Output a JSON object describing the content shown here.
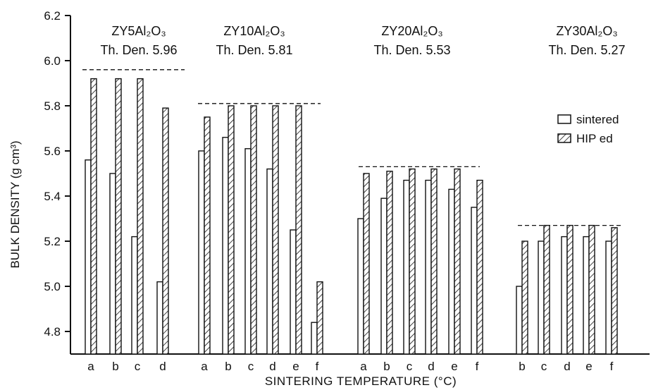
{
  "chart_data": {
    "type": "bar",
    "xlabel": "SINTERING TEMPERATURE (°C)",
    "ylabel": "BULK DENSITY  (g cm³)",
    "ylim": [
      4.7,
      6.2
    ],
    "yticks": [
      4.8,
      5.0,
      5.2,
      5.4,
      5.6,
      5.8,
      6.0,
      6.2
    ],
    "grid": false,
    "legend_position": "right",
    "legend": [
      {
        "key": "sintered",
        "label": "sintered",
        "pattern": "open"
      },
      {
        "key": "hip",
        "label": "HIP ed",
        "pattern": "hatched"
      }
    ],
    "groups": [
      {
        "name": "ZY5Al₂O₃",
        "theoretical_label": "Th. Den. 5.96",
        "theoretical_density": 5.96,
        "categories": [
          "a",
          "b",
          "c",
          "d"
        ],
        "series": [
          {
            "name": "sintered",
            "values": [
              5.56,
              5.5,
              5.22,
              5.02
            ]
          },
          {
            "name": "HIP ed",
            "values": [
              5.92,
              5.92,
              5.92,
              5.79
            ]
          }
        ]
      },
      {
        "name": "ZY10Al₂O₃",
        "theoretical_label": "Th. Den. 5.81",
        "theoretical_density": 5.81,
        "categories": [
          "a",
          "b",
          "c",
          "d",
          "e",
          "f"
        ],
        "series": [
          {
            "name": "sintered",
            "values": [
              5.6,
              5.66,
              5.61,
              5.52,
              5.25,
              4.84
            ]
          },
          {
            "name": "HIP ed",
            "values": [
              5.75,
              5.8,
              5.8,
              5.8,
              5.8,
              5.02
            ]
          }
        ]
      },
      {
        "name": "ZY20Al₂O₃",
        "theoretical_label": "Th. Den. 5.53",
        "theoretical_density": 5.53,
        "categories": [
          "a",
          "b",
          "c",
          "d",
          "e",
          "f"
        ],
        "series": [
          {
            "name": "sintered",
            "values": [
              5.3,
              5.39,
              5.47,
              5.47,
              5.43,
              5.35
            ]
          },
          {
            "name": "HIP ed",
            "values": [
              5.5,
              5.51,
              5.52,
              5.52,
              5.52,
              5.47
            ]
          }
        ]
      },
      {
        "name": "ZY30Al₂O₃",
        "theoretical_label": "Th. Den. 5.27",
        "theoretical_density": 5.27,
        "categories": [
          "b",
          "c",
          "d",
          "e",
          "f"
        ],
        "series": [
          {
            "name": "sintered",
            "values": [
              5.0,
              5.2,
              5.22,
              5.22,
              5.2
            ]
          },
          {
            "name": "HIP ed",
            "values": [
              5.2,
              5.27,
              5.27,
              5.27,
              5.26
            ]
          }
        ]
      }
    ]
  }
}
